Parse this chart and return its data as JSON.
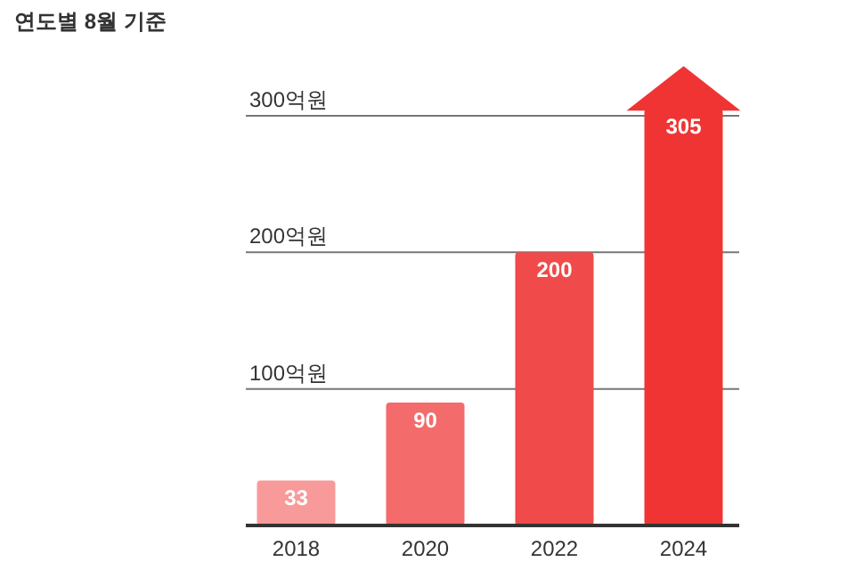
{
  "chart_data": {
    "type": "bar",
    "title": "연도별 8월 기준",
    "categories": [
      "2018",
      "2020",
      "2022",
      "2024"
    ],
    "values": [
      33,
      90,
      200,
      305
    ],
    "colors": [
      "#f89a9a",
      "#f36b6b",
      "#f04a4a",
      "#f03434"
    ],
    "ref_lines": [
      {
        "axis": "y",
        "value": 100,
        "label": "100억원",
        "color": "#777777"
      },
      {
        "axis": "y",
        "value": 200,
        "label": "200억원",
        "color": "#777777"
      },
      {
        "axis": "y",
        "value": 300,
        "label": "300억원",
        "color": "#777777"
      }
    ],
    "data_labels": true
  }
}
